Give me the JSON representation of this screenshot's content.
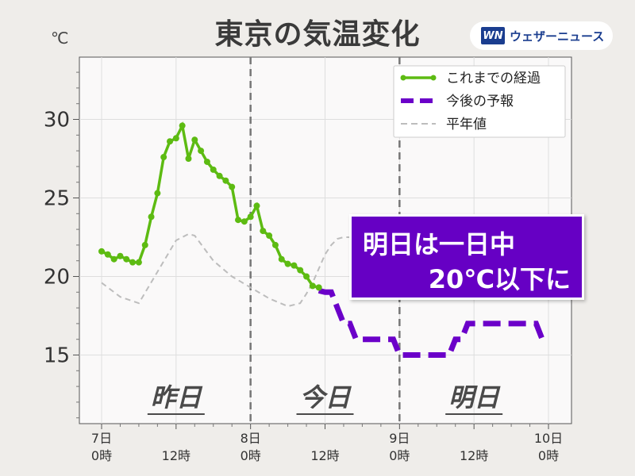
{
  "title": "東京の気温変化",
  "unit": "℃",
  "brand": {
    "mark": "WN",
    "name": "ウェザーニュース"
  },
  "annotation": {
    "line1": "明日は一日中",
    "line2": "20℃以下に"
  },
  "day_labels": [
    "昨日",
    "今日",
    "明日"
  ],
  "colors": {
    "observed": "#5dbb12",
    "forecast": "#6b00c9",
    "normal": "#bdbdbd",
    "annotation_bg": "#6600c4"
  },
  "chart_data": {
    "type": "line",
    "title": "東京の気温変化",
    "ylabel": "℃",
    "xlim": [
      0,
      72
    ],
    "ylim": [
      10,
      34
    ],
    "y_ticks": [
      15,
      20,
      25,
      30
    ],
    "x_ticks": [
      {
        "x": 0,
        "line1": "7日",
        "line2": "0時"
      },
      {
        "x": 12,
        "line1": "",
        "line2": "12時"
      },
      {
        "x": 24,
        "line1": "8日",
        "line2": "0時"
      },
      {
        "x": 36,
        "line1": "",
        "line2": "12時"
      },
      {
        "x": 48,
        "line1": "9日",
        "line2": "0時"
      },
      {
        "x": 60,
        "line1": "",
        "line2": "12時"
      },
      {
        "x": 72,
        "line1": "10日",
        "line2": "0時"
      }
    ],
    "day_boundaries": [
      24,
      48
    ],
    "grid": true,
    "legend_position": "top-right",
    "series": [
      {
        "name": "これまでの経過",
        "style": "solid-markers",
        "x": [
          0,
          1,
          2,
          3,
          4,
          5,
          6,
          7,
          8,
          9,
          10,
          11,
          12,
          13,
          14,
          15,
          16,
          17,
          18,
          19,
          20,
          21,
          22,
          23,
          24,
          25,
          26,
          27,
          28,
          29,
          30,
          31,
          32,
          33,
          34,
          35
        ],
        "y": [
          21.6,
          21.4,
          21.1,
          21.3,
          21.1,
          20.9,
          20.9,
          22.0,
          23.8,
          25.3,
          27.6,
          28.6,
          28.8,
          29.6,
          27.5,
          28.7,
          28.0,
          27.3,
          26.8,
          26.4,
          26.1,
          25.7,
          23.6,
          23.5,
          23.8,
          24.5,
          22.9,
          22.6,
          22.0,
          21.1,
          20.8,
          20.7,
          20.4,
          20.0,
          19.4,
          19.3
        ]
      },
      {
        "name": "今後の予報",
        "style": "dashed-thick",
        "x": [
          35,
          36,
          37,
          38,
          39,
          40,
          41,
          42,
          43,
          44,
          45,
          46,
          47,
          48,
          49,
          50,
          51,
          52,
          53,
          54,
          55,
          56,
          57,
          58,
          59,
          60,
          61,
          62,
          63,
          64,
          65,
          66,
          67,
          68,
          69,
          70,
          71,
          72
        ],
        "y": [
          19.1,
          19.0,
          19.0,
          18.0,
          17.0,
          17.0,
          16.0,
          16.0,
          16.0,
          16.0,
          16.0,
          16.0,
          16.0,
          15.0,
          15.0,
          15.0,
          15.0,
          15.0,
          15.0,
          15.0,
          15.0,
          15.0,
          16.0,
          16.0,
          17.0,
          17.0,
          17.0,
          17.0,
          17.0,
          17.0,
          17.0,
          17.0,
          17.0,
          17.0,
          17.0,
          17.0,
          16.0,
          16.0
        ]
      },
      {
        "name": "平年値",
        "style": "dashed-thin",
        "x": [
          0,
          3,
          6,
          9,
          12,
          14,
          15,
          18,
          21,
          24,
          27,
          30,
          32,
          33,
          34,
          36,
          37,
          38,
          39,
          40,
          41,
          44
        ],
        "y": [
          19.6,
          18.7,
          18.3,
          20.3,
          22.3,
          22.7,
          22.6,
          21.0,
          20.0,
          19.3,
          18.6,
          18.1,
          18.3,
          18.9,
          19.6,
          21.4,
          22.0,
          22.4,
          22.5,
          22.5,
          22.4,
          21.8
        ]
      }
    ]
  }
}
